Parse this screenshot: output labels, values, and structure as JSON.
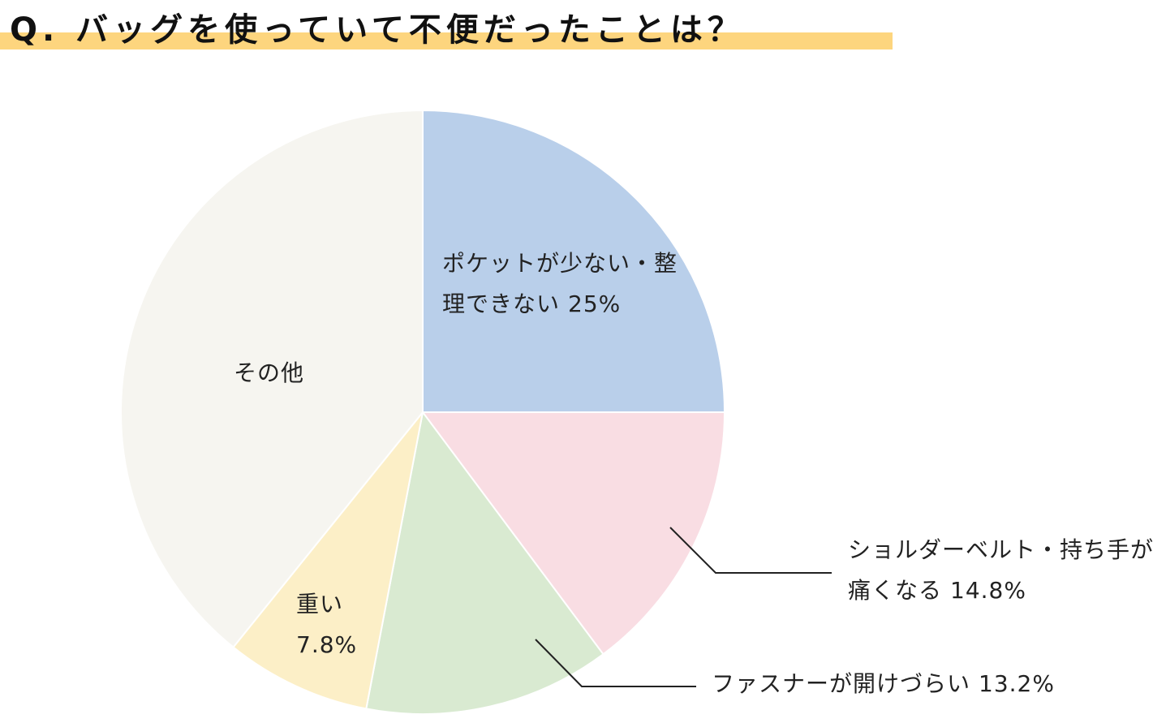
{
  "chart_data": {
    "type": "pie",
    "title": "Q. バッグを使っていて不便だったことは？",
    "categories": [
      "ポケットが少ない・整理できない",
      "ショルダーベルト・持ち手が痛くなる",
      "ファスナーが開けづらい",
      "重い",
      "その他"
    ],
    "values": [
      25,
      14.8,
      13.2,
      7.8,
      39.2
    ],
    "value_labels": [
      "25%",
      "14.8%",
      "13.2%",
      "7.8%",
      null
    ],
    "colors": [
      "#b9cfea",
      "#f9dde3",
      "#d9ead1",
      "#fcefc7",
      "#f6f5f0"
    ]
  }
}
